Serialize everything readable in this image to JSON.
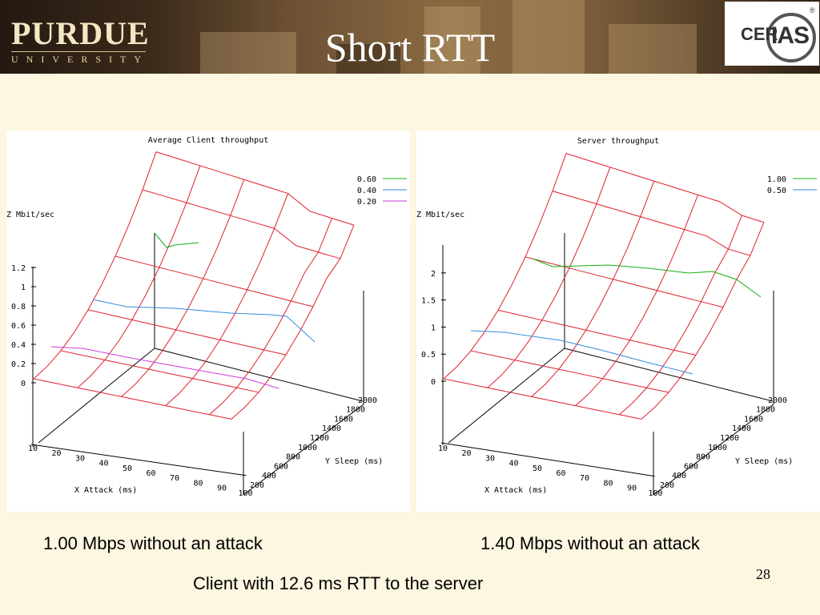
{
  "slide": {
    "title": "Short RTT",
    "logo_name": "PURDUE",
    "logo_sub": "UNIVERSITY",
    "cerias_logo": "CERIAS",
    "left_caption": "1.00 Mbps without an attack",
    "right_caption": "1.40 Mbps without an attack",
    "bottom_caption": "Client with 12.6 ms RTT to the server",
    "page_number": "28"
  },
  "colors": {
    "surface": "#e0202c",
    "green": "#12b012",
    "blue": "#2f8fe0",
    "magenta": "#d23ad8"
  },
  "chart_data": [
    {
      "type": "surface3d",
      "title": "Average Client throughput",
      "zlabel": "Z Mbit/sec",
      "xlabel": "X Attack (ms)",
      "ylabel": "Y Sleep (ms)",
      "x_ticks": [
        10,
        20,
        30,
        40,
        50,
        60,
        70,
        80,
        90,
        100
      ],
      "y_ticks": [
        200,
        400,
        600,
        800,
        1000,
        1200,
        1400,
        1600,
        1800,
        2000
      ],
      "z_ticks": [
        "0",
        "0.2",
        "0.4",
        "0.6",
        "0.8",
        "1",
        "1.2"
      ],
      "zlim": [
        0,
        1.2
      ],
      "contour_legend": [
        {
          "label": "0.60",
          "color": "#12b012"
        },
        {
          "label": "0.40",
          "color": "#2f8fe0"
        },
        {
          "label": "0.20",
          "color": "#d23ad8"
        }
      ]
    },
    {
      "type": "surface3d",
      "title": "Server throughput",
      "zlabel": "Z Mbit/sec",
      "xlabel": "X Attack (ms)",
      "ylabel": "Y Sleep (ms)",
      "x_ticks": [
        10,
        20,
        30,
        40,
        50,
        60,
        70,
        80,
        90,
        100
      ],
      "y_ticks": [
        200,
        400,
        600,
        800,
        1000,
        1200,
        1400,
        1600,
        1800,
        2000
      ],
      "z_ticks": [
        "0",
        "0.5",
        "1",
        "1.5",
        "2"
      ],
      "zlim": [
        0,
        2
      ],
      "contour_legend": [
        {
          "label": "1.00",
          "color": "#12b012"
        },
        {
          "label": "0.50",
          "color": "#2f8fe0"
        }
      ]
    }
  ]
}
